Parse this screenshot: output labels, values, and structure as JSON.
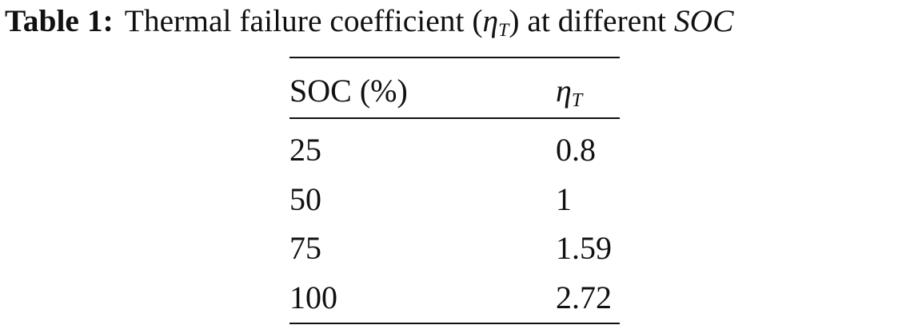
{
  "caption": {
    "label": "Table 1:",
    "text": "Thermal failure coefficient (",
    "symbol": "η",
    "subscript": "T",
    "text_after": ") at different ",
    "variable": "SOC"
  },
  "table": {
    "header": [
      "SOC (%)",
      {
        "symbol": "η",
        "subscript": "T"
      }
    ],
    "rows": [
      [
        "25",
        "0.8"
      ],
      [
        "50",
        "1"
      ],
      [
        "75",
        "1.59"
      ],
      [
        "100",
        "2.72"
      ]
    ]
  }
}
